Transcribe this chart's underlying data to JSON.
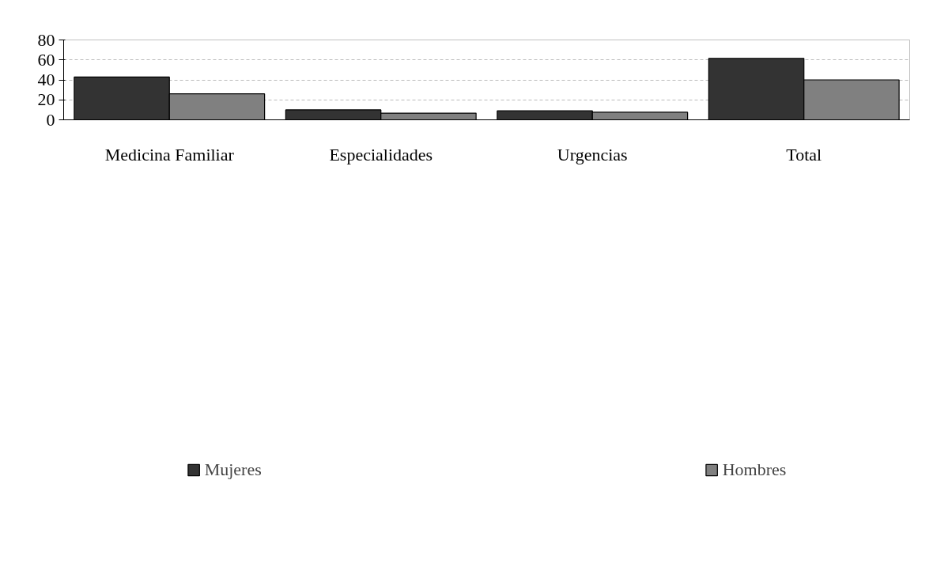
{
  "chart_data": {
    "type": "bar",
    "categories": [
      "Medicina Familiar",
      "Especialidades",
      "Urgencias",
      "Total"
    ],
    "series": [
      {
        "name": "Mujeres",
        "color": "#333333",
        "values": [
          42.8,
          10,
          9,
          61.6
        ]
      },
      {
        "name": "Hombres",
        "color": "#808080",
        "values": [
          26,
          6.7,
          7.6,
          40
        ]
      }
    ],
    "ylim": [
      0,
      80
    ],
    "yticks": [
      0,
      20,
      40,
      60,
      80
    ],
    "grid": "y",
    "legend": "bottom"
  }
}
